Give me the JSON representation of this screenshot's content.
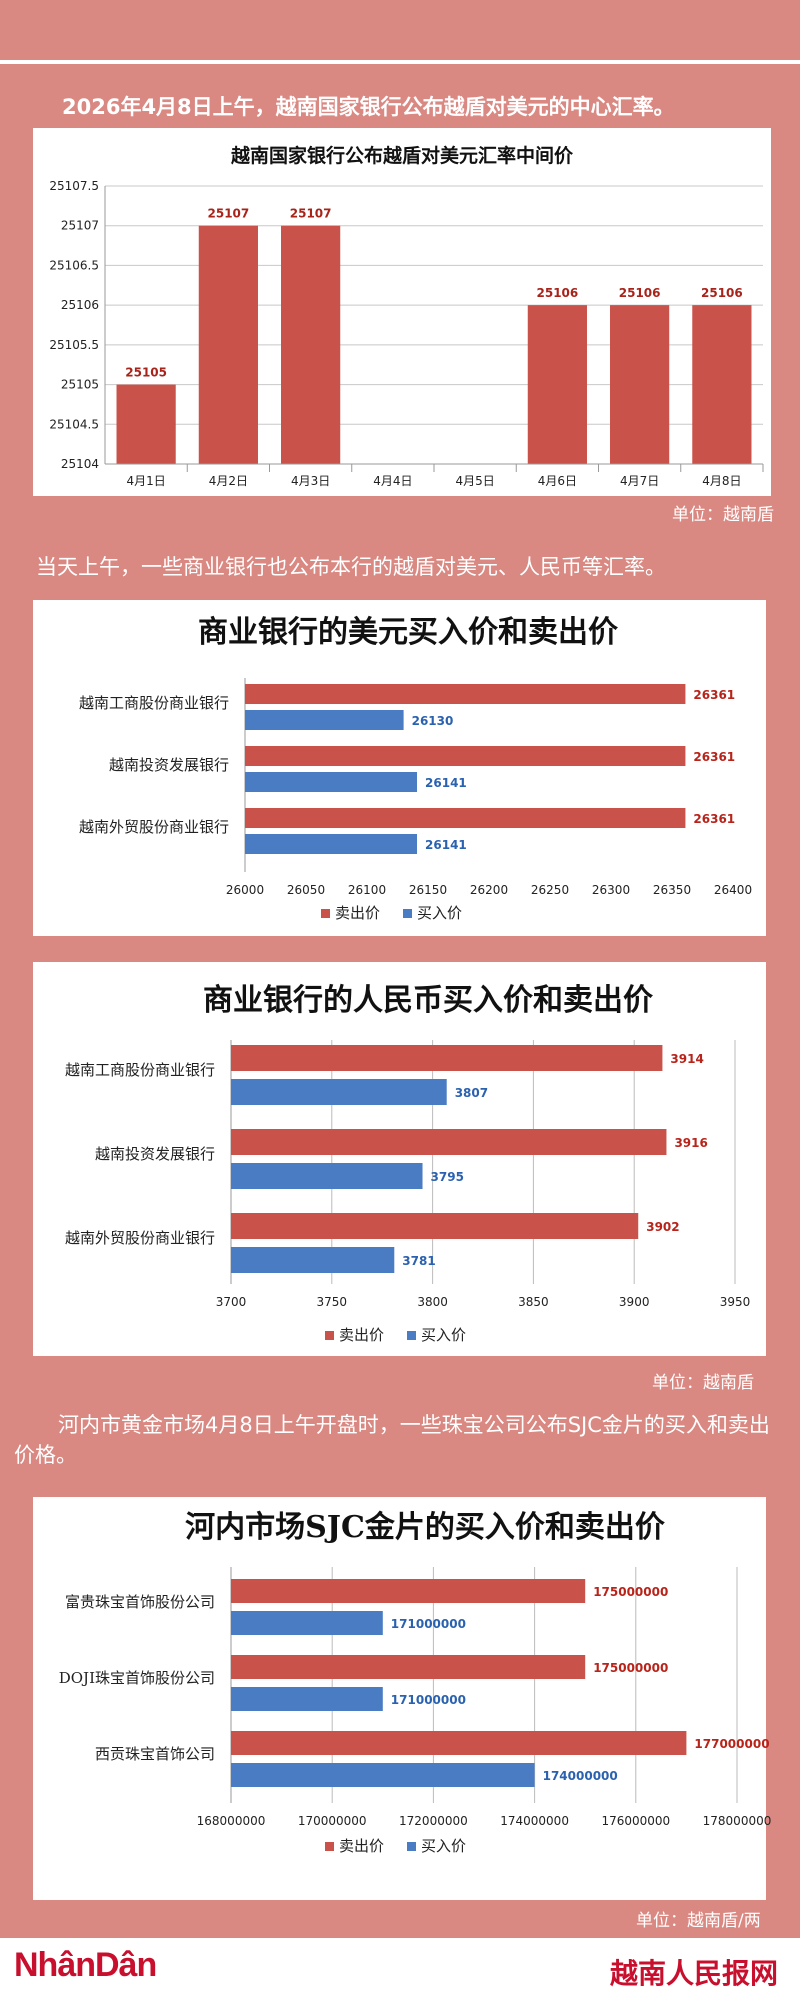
{
  "intro": "2026年4月8日上午，越南国家银行公布越盾对美元的中心汇率。",
  "unit1": "单位：越南盾",
  "para2": "当天上午，一些商业银行也公布本行的越盾对美元、人民币等汇率。",
  "unit2": "单位：越南盾",
  "para3": "河内市黄金市场4月8日上午开盘时，一些珠宝公司公布SJC金片的买入和卖出价格。",
  "unit3": "单位：越南盾/两",
  "footer": {
    "left_logo": "NhânDân",
    "right_logo": "越南人民报网"
  },
  "colors": {
    "sell": "#c9524a",
    "buy": "#4a7cc4",
    "background": "#d98882"
  },
  "chart_data": [
    {
      "type": "bar",
      "title": "越南国家银行公布越盾对美元汇率中间价",
      "categories": [
        "4月1日",
        "4月2日",
        "4月3日",
        "4月4日",
        "4月5日",
        "4月6日",
        "4月7日",
        "4月8日"
      ],
      "values": [
        25105,
        25107,
        25107,
        null,
        null,
        25106,
        25106,
        25106
      ],
      "labels": [
        "25105",
        "25107",
        "25107",
        "",
        "",
        "25106",
        "25106",
        "25106"
      ],
      "ylim": [
        25104,
        25107.5
      ],
      "yticks": [
        "25104",
        "25104.5",
        "25105",
        "25105.5",
        "25106",
        "25106.5",
        "25107",
        "25107.5"
      ],
      "grid": true
    },
    {
      "type": "bar",
      "orientation": "horizontal",
      "title": "商业银行的美元买入价和卖出价",
      "categories": [
        "越南工商股份商业银行",
        "越南投资发展银行",
        "越南外贸股份商业银行"
      ],
      "series": [
        {
          "name": "卖出价",
          "values": [
            26361,
            26361,
            26361
          ],
          "labels": [
            "26361",
            "26361",
            "26361"
          ]
        },
        {
          "name": "买入价",
          "values": [
            26130,
            26141,
            26141
          ],
          "labels": [
            "26130",
            "26141",
            "26141"
          ]
        }
      ],
      "xlim": [
        26000,
        26400
      ],
      "xticks": [
        "26000",
        "26050",
        "26100",
        "26150",
        "26200",
        "26250",
        "26300",
        "26350",
        "26400"
      ],
      "legend": "bottom"
    },
    {
      "type": "bar",
      "orientation": "horizontal",
      "title": "商业银行的人民币买入价和卖出价",
      "categories": [
        "越南工商股份商业银行",
        "越南投资发展银行",
        "越南外贸股份商业银行"
      ],
      "series": [
        {
          "name": "卖出价",
          "values": [
            3914,
            3916,
            3902
          ],
          "labels": [
            "3914",
            "3916",
            "3902"
          ]
        },
        {
          "name": "买入价",
          "values": [
            3807,
            3795,
            3781
          ],
          "labels": [
            "3807",
            "3795",
            "3781"
          ]
        }
      ],
      "xlim": [
        3700,
        3950
      ],
      "xticks": [
        "3700",
        "3750",
        "3800",
        "3850",
        "3900",
        "3950"
      ],
      "legend": "bottom",
      "grid": true
    },
    {
      "type": "bar",
      "orientation": "horizontal",
      "title": "河内市场SJC金片的买入价和卖出价",
      "categories": [
        "富贵珠宝首饰股份公司",
        "DOJI珠宝首饰股份公司",
        "西贡珠宝首饰公司"
      ],
      "series": [
        {
          "name": "卖出价",
          "values": [
            175000000,
            175000000,
            177000000
          ],
          "labels": [
            "175000000",
            "175000000",
            "177000000"
          ]
        },
        {
          "name": "买入价",
          "values": [
            171000000,
            171000000,
            174000000
          ],
          "labels": [
            "171000000",
            "171000000",
            "174000000"
          ]
        }
      ],
      "xlim": [
        168000000,
        178000000
      ],
      "xticks": [
        "168000000",
        "170000000",
        "172000000",
        "174000000",
        "176000000",
        "178000000"
      ],
      "legend": "bottom",
      "grid": true
    }
  ]
}
